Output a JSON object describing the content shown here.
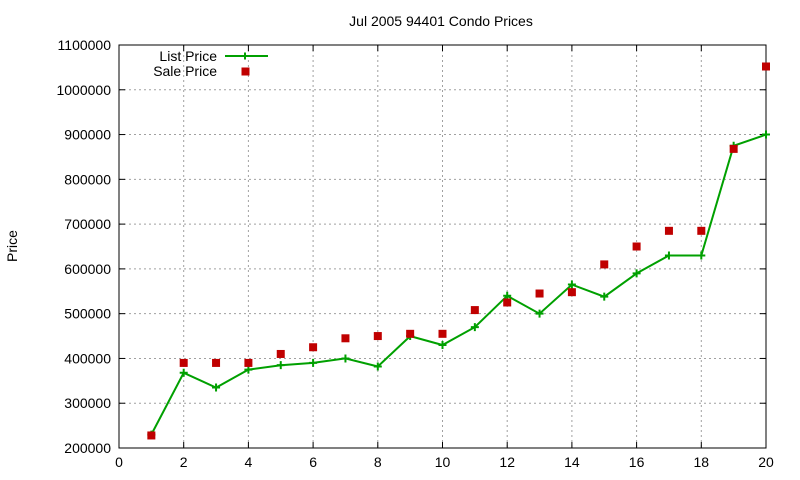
{
  "chart_data": {
    "type": "line",
    "title": "Jul 2005 94401 Condo Prices",
    "xlabel": "",
    "ylabel": "Price",
    "xlim": [
      0,
      20
    ],
    "ylim": [
      200000,
      1100000
    ],
    "x_ticks": [
      "0",
      "2",
      "4",
      "6",
      "8",
      "10",
      "12",
      "14",
      "16",
      "18",
      "20"
    ],
    "y_ticks": [
      "200000",
      "300000",
      "400000",
      "500000",
      "600000",
      "700000",
      "800000",
      "900000",
      "1000000",
      "1100000"
    ],
    "grid": true,
    "legend_position": "top-left",
    "series": [
      {
        "name": "List Price",
        "style": "line-with-plus-markers",
        "color": "#00a000",
        "x": [
          1,
          2,
          3,
          4,
          5,
          6,
          7,
          8,
          9,
          10,
          11,
          12,
          13,
          14,
          15,
          16,
          17,
          18,
          19,
          20
        ],
        "values": [
          230000,
          368000,
          335000,
          375000,
          385000,
          390000,
          400000,
          382000,
          450000,
          430000,
          470000,
          540000,
          500000,
          565000,
          538000,
          590000,
          630000,
          630000,
          875000,
          900000
        ]
      },
      {
        "name": "Sale Price",
        "style": "square-markers",
        "color": "#c00000",
        "x": [
          1,
          2,
          3,
          4,
          5,
          6,
          7,
          8,
          9,
          10,
          11,
          12,
          13,
          14,
          15,
          16,
          17,
          18,
          19,
          20
        ],
        "values": [
          228000,
          390000,
          390000,
          390000,
          410000,
          425000,
          445000,
          450000,
          455000,
          455000,
          508000,
          525000,
          545000,
          548000,
          610000,
          650000,
          685000,
          685000,
          868000,
          1052000
        ]
      }
    ]
  }
}
